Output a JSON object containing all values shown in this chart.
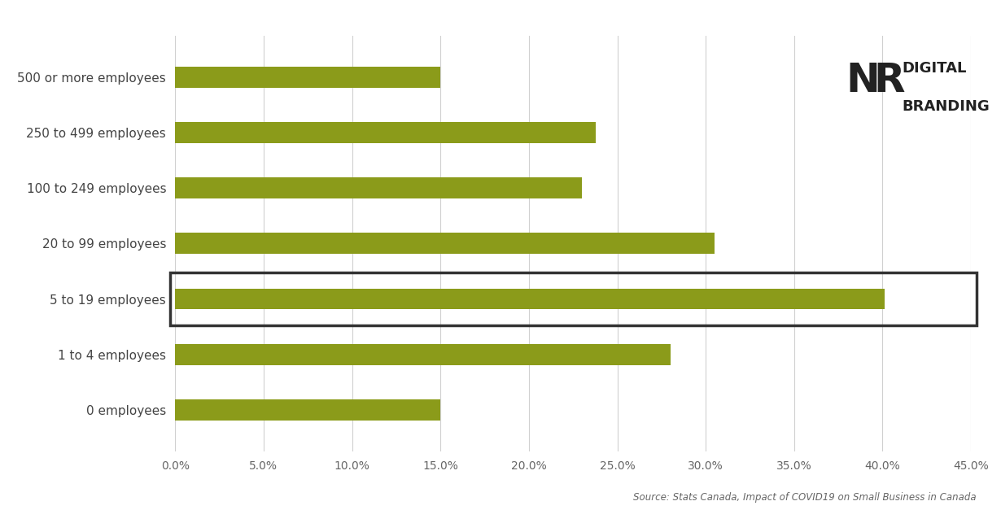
{
  "categories": [
    "0 employees",
    "1 to 4 employees",
    "5 to 19 employees",
    "20 to 99 employees",
    "100 to 249 employees",
    "250 to 499 employees",
    "500 or more employees"
  ],
  "values": [
    0.15,
    0.28,
    0.401,
    0.305,
    0.23,
    0.238,
    0.15
  ],
  "bar_color": "#8B9B1A",
  "highlight_index": 2,
  "xlim": [
    0,
    0.45
  ],
  "xticks": [
    0.0,
    0.05,
    0.1,
    0.15,
    0.2,
    0.25,
    0.3,
    0.35,
    0.4,
    0.45
  ],
  "xtick_labels": [
    "0.0%",
    "5.0%",
    "10.0%",
    "15.0%",
    "20.0%",
    "25.0%",
    "30.0%",
    "35.0%",
    "40.0%",
    "45.0%"
  ],
  "source_text": "Source: Stats Canada, Impact of COVID19 on Small Business in Canada",
  "background_color": "#ffffff",
  "bar_height": 0.38,
  "grid_color": "#d0d0d0",
  "label_fontsize": 11,
  "tick_fontsize": 10,
  "source_fontsize": 8.5,
  "logo_nr_fontsize": 36,
  "logo_text_fontsize": 13
}
